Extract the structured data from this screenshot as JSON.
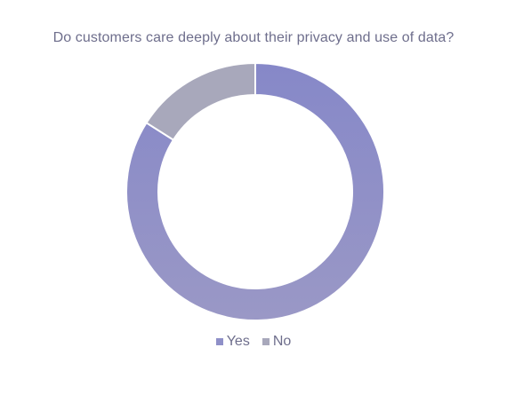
{
  "chart_data": {
    "type": "donut",
    "title": "Do customers care deeply about their privacy and use of data?",
    "categories": [
      "Yes",
      "No"
    ],
    "values": [
      84,
      16
    ],
    "colors": [
      "#8f90c8",
      "#a8a8bb"
    ],
    "legend_position": "bottom"
  }
}
